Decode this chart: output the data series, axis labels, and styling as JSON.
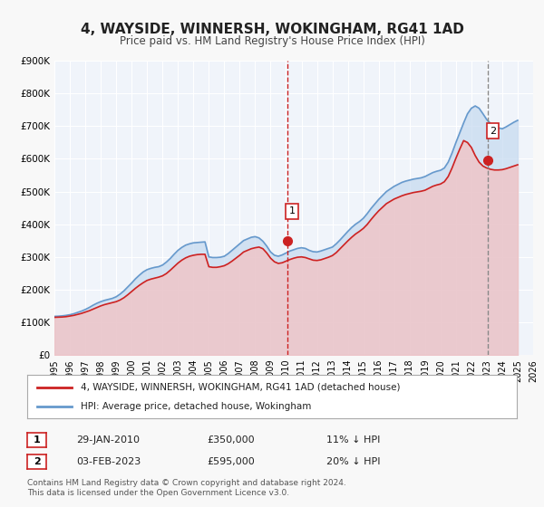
{
  "title": "4, WAYSIDE, WINNERSH, WOKINGHAM, RG41 1AD",
  "subtitle": "Price paid vs. HM Land Registry's House Price Index (HPI)",
  "xlabel": "",
  "ylabel": "",
  "ylim": [
    0,
    900000
  ],
  "xlim_start": 1995.0,
  "xlim_end": 2026.0,
  "yticks": [
    0,
    100000,
    200000,
    300000,
    400000,
    500000,
    600000,
    700000,
    800000,
    900000
  ],
  "ytick_labels": [
    "£0",
    "£100K",
    "£200K",
    "£300K",
    "£400K",
    "£500K",
    "£600K",
    "£700K",
    "£800K",
    "£900K"
  ],
  "xticks": [
    1995,
    1996,
    1997,
    1998,
    1999,
    2000,
    2001,
    2002,
    2003,
    2004,
    2005,
    2006,
    2007,
    2008,
    2009,
    2010,
    2011,
    2012,
    2013,
    2014,
    2015,
    2016,
    2017,
    2018,
    2019,
    2020,
    2021,
    2022,
    2023,
    2024,
    2025,
    2026
  ],
  "bg_color": "#f0f4fa",
  "plot_bg_color": "#f0f4fa",
  "grid_color": "#ffffff",
  "hpi_color": "#6699cc",
  "hpi_fill_color": "#c5d9f0",
  "price_color": "#cc2222",
  "price_fill_color": "#f5c0c0",
  "marker1_date": 2010.08,
  "marker1_value": 350000,
  "marker1_label": "1",
  "marker2_date": 2023.09,
  "marker2_value": 595000,
  "marker2_label": "2",
  "vline1_date": 2010.08,
  "vline2_date": 2023.09,
  "legend_label1": "4, WAYSIDE, WINNERSH, WOKINGHAM, RG41 1AD (detached house)",
  "legend_label2": "HPI: Average price, detached house, Wokingham",
  "annotation1_box": "1",
  "annotation1_date_str": "29-JAN-2010",
  "annotation1_price_str": "£350,000",
  "annotation1_hpi_str": "11% ↓ HPI",
  "annotation2_box": "2",
  "annotation2_date_str": "03-FEB-2023",
  "annotation2_price_str": "£595,000",
  "annotation2_hpi_str": "20% ↓ HPI",
  "footer_text": "Contains HM Land Registry data © Crown copyright and database right 2024.\nThis data is licensed under the Open Government Licence v3.0.",
  "hpi_x": [
    1995.0,
    1995.25,
    1995.5,
    1995.75,
    1996.0,
    1996.25,
    1996.5,
    1996.75,
    1997.0,
    1997.25,
    1997.5,
    1997.75,
    1998.0,
    1998.25,
    1998.5,
    1998.75,
    1999.0,
    1999.25,
    1999.5,
    1999.75,
    2000.0,
    2000.25,
    2000.5,
    2000.75,
    2001.0,
    2001.25,
    2001.5,
    2001.75,
    2002.0,
    2002.25,
    2002.5,
    2002.75,
    2003.0,
    2003.25,
    2003.5,
    2003.75,
    2004.0,
    2004.25,
    2004.5,
    2004.75,
    2005.0,
    2005.25,
    2005.5,
    2005.75,
    2006.0,
    2006.25,
    2006.5,
    2006.75,
    2007.0,
    2007.25,
    2007.5,
    2007.75,
    2008.0,
    2008.25,
    2008.5,
    2008.75,
    2009.0,
    2009.25,
    2009.5,
    2009.75,
    2010.0,
    2010.25,
    2010.5,
    2010.75,
    2011.0,
    2011.25,
    2011.5,
    2011.75,
    2012.0,
    2012.25,
    2012.5,
    2012.75,
    2013.0,
    2013.25,
    2013.5,
    2013.75,
    2014.0,
    2014.25,
    2014.5,
    2014.75,
    2015.0,
    2015.25,
    2015.5,
    2015.75,
    2016.0,
    2016.25,
    2016.5,
    2016.75,
    2017.0,
    2017.25,
    2017.5,
    2017.75,
    2018.0,
    2018.25,
    2018.5,
    2018.75,
    2019.0,
    2019.25,
    2019.5,
    2019.75,
    2020.0,
    2020.25,
    2020.5,
    2020.75,
    2021.0,
    2021.25,
    2021.5,
    2021.75,
    2022.0,
    2022.25,
    2022.5,
    2022.75,
    2023.0,
    2023.25,
    2023.5,
    2023.75,
    2024.0,
    2024.25,
    2024.5,
    2024.75,
    2025.0
  ],
  "hpi_y": [
    118000,
    118500,
    119500,
    121000,
    123000,
    126000,
    130000,
    134000,
    139000,
    145000,
    152000,
    158000,
    163000,
    167000,
    170000,
    173000,
    178000,
    186000,
    196000,
    208000,
    220000,
    233000,
    244000,
    254000,
    261000,
    265000,
    268000,
    270000,
    275000,
    284000,
    295000,
    308000,
    320000,
    329000,
    336000,
    340000,
    343000,
    344000,
    345000,
    346000,
    300000,
    298000,
    298000,
    299000,
    302000,
    310000,
    320000,
    330000,
    340000,
    350000,
    355000,
    360000,
    362000,
    358000,
    348000,
    333000,
    315000,
    305000,
    302000,
    306000,
    312000,
    318000,
    322000,
    326000,
    328000,
    326000,
    320000,
    316000,
    315000,
    318000,
    322000,
    326000,
    330000,
    340000,
    352000,
    365000,
    378000,
    390000,
    400000,
    408000,
    418000,
    432000,
    448000,
    462000,
    476000,
    488000,
    500000,
    508000,
    516000,
    522000,
    528000,
    532000,
    535000,
    538000,
    540000,
    542000,
    546000,
    552000,
    558000,
    562000,
    565000,
    572000,
    590000,
    618000,
    650000,
    680000,
    710000,
    738000,
    755000,
    762000,
    755000,
    738000,
    720000,
    708000,
    700000,
    695000,
    692000,
    698000,
    705000,
    712000,
    718000
  ],
  "price_x": [
    1995.0,
    1995.25,
    1995.5,
    1995.75,
    1996.0,
    1996.25,
    1996.5,
    1996.75,
    1997.0,
    1997.25,
    1997.5,
    1997.75,
    1998.0,
    1998.25,
    1998.5,
    1998.75,
    1999.0,
    1999.25,
    1999.5,
    1999.75,
    2000.0,
    2000.25,
    2000.5,
    2000.75,
    2001.0,
    2001.25,
    2001.5,
    2001.75,
    2002.0,
    2002.25,
    2002.5,
    2002.75,
    2003.0,
    2003.25,
    2003.5,
    2003.75,
    2004.0,
    2004.25,
    2004.5,
    2004.75,
    2005.0,
    2005.25,
    2005.5,
    2005.75,
    2006.0,
    2006.25,
    2006.5,
    2006.75,
    2007.0,
    2007.25,
    2007.5,
    2007.75,
    2008.0,
    2008.25,
    2008.5,
    2008.75,
    2009.0,
    2009.25,
    2009.5,
    2009.75,
    2010.0,
    2010.25,
    2010.5,
    2010.75,
    2011.0,
    2011.25,
    2011.5,
    2011.75,
    2012.0,
    2012.25,
    2012.5,
    2012.75,
    2013.0,
    2013.25,
    2013.5,
    2013.75,
    2014.0,
    2014.25,
    2014.5,
    2014.75,
    2015.0,
    2015.25,
    2015.5,
    2015.75,
    2016.0,
    2016.25,
    2016.5,
    2016.75,
    2017.0,
    2017.25,
    2017.5,
    2017.75,
    2018.0,
    2018.25,
    2018.5,
    2018.75,
    2019.0,
    2019.25,
    2019.5,
    2019.75,
    2020.0,
    2020.25,
    2020.5,
    2020.75,
    2021.0,
    2021.25,
    2021.5,
    2021.75,
    2022.0,
    2022.25,
    2022.5,
    2022.75,
    2023.0,
    2023.25,
    2023.5,
    2023.75,
    2024.0,
    2024.25,
    2024.5,
    2024.75,
    2025.0
  ],
  "price_y": [
    115000,
    115500,
    116000,
    117000,
    119000,
    121000,
    124000,
    127000,
    131000,
    135000,
    140000,
    145000,
    150000,
    154000,
    157000,
    160000,
    163000,
    168000,
    175000,
    184000,
    194000,
    204000,
    213000,
    221000,
    228000,
    232000,
    235000,
    238000,
    242000,
    249000,
    259000,
    270000,
    281000,
    290000,
    297000,
    302000,
    305000,
    307000,
    308000,
    308000,
    270000,
    268000,
    268000,
    270000,
    273000,
    279000,
    287000,
    296000,
    305000,
    315000,
    320000,
    325000,
    328000,
    330000,
    325000,
    312000,
    296000,
    285000,
    280000,
    282000,
    287000,
    292000,
    296000,
    299000,
    300000,
    298000,
    294000,
    290000,
    289000,
    291000,
    295000,
    299000,
    304000,
    313000,
    325000,
    337000,
    349000,
    360000,
    370000,
    378000,
    387000,
    399000,
    414000,
    428000,
    441000,
    452000,
    463000,
    470000,
    477000,
    482000,
    487000,
    491000,
    494000,
    497000,
    499000,
    501000,
    504000,
    510000,
    516000,
    520000,
    523000,
    530000,
    546000,
    572000,
    602000,
    630000,
    656000,
    650000,
    635000,
    610000,
    590000,
    578000,
    572000,
    568000,
    566000,
    566000,
    567000,
    570000,
    574000,
    578000,
    582000
  ]
}
